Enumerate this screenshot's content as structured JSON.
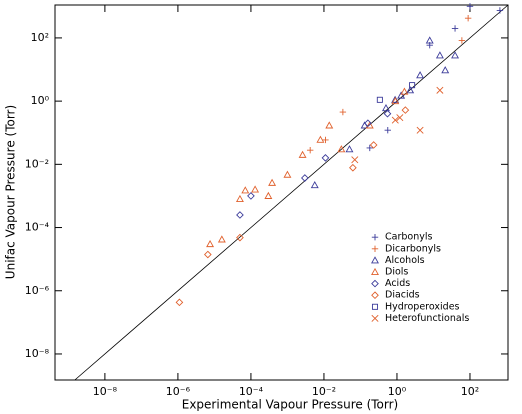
{
  "chart_data": {
    "type": "scatter",
    "x_label": "Experimental Vapour Pressure (Torr)",
    "y_label": "Unifac Vapour Pressure (Torr)",
    "x_log": true,
    "y_log": true,
    "xlim": [
      4.3e-10,
      1100
    ],
    "ylim": [
      1.5e-09,
      1100
    ],
    "xticks": [
      {
        "value": 1e-08,
        "label": "10⁻⁸"
      },
      {
        "value": 1e-06,
        "label": "10⁻⁶"
      },
      {
        "value": 0.0001,
        "label": "10⁻⁴"
      },
      {
        "value": 0.01,
        "label": "10⁻²"
      },
      {
        "value": 1,
        "label": "10⁰"
      },
      {
        "value": 100,
        "label": "10²"
      }
    ],
    "yticks": [
      {
        "value": 1e-08,
        "label": "10⁻⁸"
      },
      {
        "value": 1e-06,
        "label": "10⁻⁶"
      },
      {
        "value": 0.0001,
        "label": "10⁻⁴"
      },
      {
        "value": 0.01,
        "label": "10⁻²"
      },
      {
        "value": 1,
        "label": "10⁰"
      },
      {
        "value": 100,
        "label": "10²"
      }
    ],
    "legend_position": "lower right",
    "series": [
      {
        "name": "Carbonyls",
        "color": "#3b3b9a",
        "marker": "plus",
        "x": [
          100,
          660,
          39,
          7.9,
          0.56,
          0.18
        ],
        "values": [
          1000,
          740,
          200,
          59,
          0.12,
          0.033
        ]
      },
      {
        "name": "Dicarbonyls",
        "color": "#e0602c",
        "marker": "plus",
        "x": [
          89,
          60,
          0.033,
          0.011,
          0.0042
        ],
        "values": [
          420,
          83,
          0.45,
          0.059,
          0.028
        ]
      },
      {
        "name": "Alcohols",
        "color": "#3b3b9a",
        "marker": "triangle",
        "x": [
          7.9,
          15,
          21,
          4.3,
          2.3,
          0.89,
          0.5,
          0.0056,
          0.13,
          0.05,
          1.3,
          39
        ],
        "values": [
          83,
          28,
          9.5,
          6.6,
          2.2,
          1.1,
          0.6,
          0.0022,
          0.17,
          0.03,
          1.5,
          28
        ]
      },
      {
        "name": "Diols",
        "color": "#e0602c",
        "marker": "triangle",
        "x": [
          0.0026,
          0.014,
          0.001,
          0.00038,
          0.00013,
          7e-05,
          5e-05,
          1.6e-05,
          7.6e-06,
          0.0003,
          0.008,
          0.03,
          0.18,
          0.9,
          1.6
        ],
        "values": [
          0.02,
          0.17,
          0.0047,
          0.0026,
          0.0016,
          0.0015,
          0.0008,
          4.2e-05,
          3e-05,
          0.001,
          0.06,
          0.03,
          0.17,
          1.0,
          2.0
        ]
      },
      {
        "name": "Acids",
        "color": "#3b3b9a",
        "marker": "diamond",
        "x": [
          5e-05,
          0.0001,
          0.003,
          0.011,
          0.16,
          0.55
        ],
        "values": [
          0.00025,
          0.001,
          0.0037,
          0.016,
          0.2,
          0.4
        ]
      },
      {
        "name": "Diacids",
        "color": "#e0602c",
        "marker": "diamond",
        "x": [
          1.1e-06,
          6.6e-06,
          5e-05,
          0.062,
          0.23,
          1.7
        ],
        "values": [
          4.3e-07,
          1.4e-05,
          4.8e-05,
          0.0078,
          0.041,
          0.52
        ]
      },
      {
        "name": "Hydroperoxides",
        "color": "#3b3b9a",
        "marker": "square",
        "x": [
          0.34,
          2.6
        ],
        "values": [
          1.1,
          3.2
        ]
      },
      {
        "name": "Heterofunctionals",
        "color": "#e0602c",
        "marker": "cross",
        "x": [
          0.9,
          4.3,
          15,
          0.07,
          1.2
        ],
        "values": [
          0.25,
          0.12,
          2.2,
          0.014,
          0.3
        ]
      }
    ]
  }
}
